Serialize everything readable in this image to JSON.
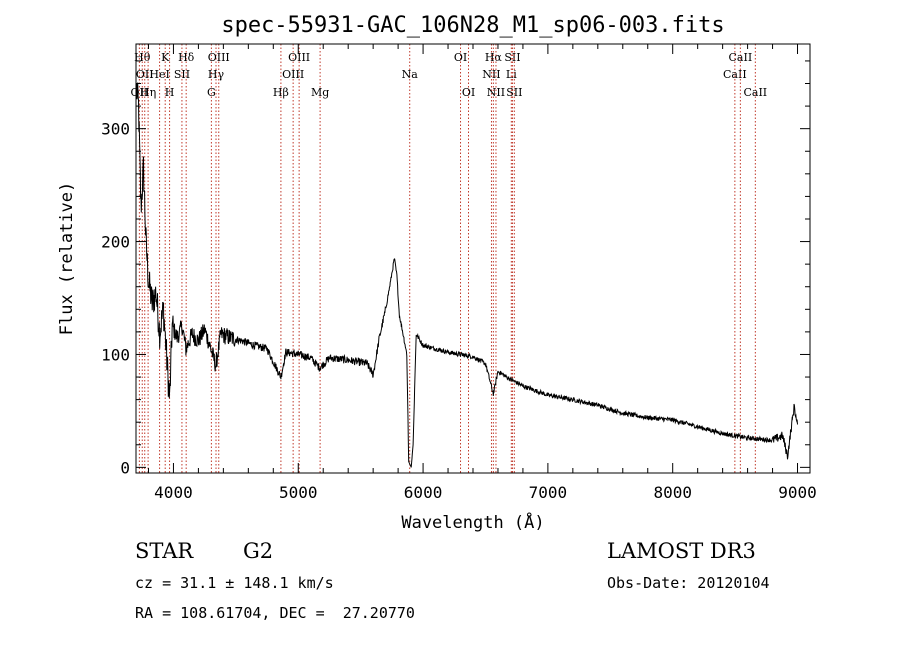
{
  "chart_data": {
    "type": "line",
    "title": "spec-55931-GAC_106N28_M1_sp06-003.fits",
    "xlabel": "Wavelength (Å)",
    "ylabel": "Flux (relative)",
    "xlim": [
      3700,
      9100
    ],
    "ylim": [
      -5,
      375
    ],
    "xticks": [
      4000,
      5000,
      6000,
      7000,
      8000,
      9000
    ],
    "xtick_labels": [
      "4000",
      "5000",
      "6000",
      "7000",
      "8000",
      "9000"
    ],
    "yticks": [
      0,
      100,
      200,
      300
    ],
    "ytick_labels": [
      "0",
      "100",
      "200",
      "300"
    ],
    "grid": false,
    "series": [
      {
        "name": "flux",
        "anchors": [
          [
            3705,
            335
          ],
          [
            3720,
            320
          ],
          [
            3740,
            230
          ],
          [
            3760,
            265
          ],
          [
            3780,
            200
          ],
          [
            3800,
            165
          ],
          [
            3830,
            145
          ],
          [
            3860,
            155
          ],
          [
            3890,
            120
          ],
          [
            3920,
            140
          ],
          [
            3950,
            90
          ],
          [
            3970,
            60
          ],
          [
            3990,
            125
          ],
          [
            4030,
            115
          ],
          [
            4070,
            125
          ],
          [
            4100,
            105
          ],
          [
            4150,
            118
          ],
          [
            4200,
            112
          ],
          [
            4250,
            122
          ],
          [
            4300,
            105
          ],
          [
            4340,
            90
          ],
          [
            4380,
            118
          ],
          [
            4450,
            115
          ],
          [
            4550,
            112
          ],
          [
            4650,
            108
          ],
          [
            4750,
            105
          ],
          [
            4861,
            80
          ],
          [
            4900,
            102
          ],
          [
            5000,
            100
          ],
          [
            5100,
            97
          ],
          [
            5172,
            88
          ],
          [
            5250,
            97
          ],
          [
            5400,
            95
          ],
          [
            5550,
            92
          ],
          [
            5600,
            82
          ],
          [
            5650,
            115
          ],
          [
            5700,
            140
          ],
          [
            5740,
            165
          ],
          [
            5770,
            185
          ],
          [
            5790,
            170
          ],
          [
            5810,
            135
          ],
          [
            5840,
            118
          ],
          [
            5870,
            100
          ],
          [
            5885,
            5
          ],
          [
            5905,
            0
          ],
          [
            5920,
            20
          ],
          [
            5945,
            118
          ],
          [
            6000,
            108
          ],
          [
            6100,
            105
          ],
          [
            6200,
            102
          ],
          [
            6300,
            100
          ],
          [
            6400,
            98
          ],
          [
            6500,
            92
          ],
          [
            6563,
            65
          ],
          [
            6600,
            85
          ],
          [
            6700,
            78
          ],
          [
            6800,
            72
          ],
          [
            6900,
            68
          ],
          [
            7000,
            64
          ],
          [
            7200,
            60
          ],
          [
            7400,
            55
          ],
          [
            7600,
            48
          ],
          [
            7800,
            44
          ],
          [
            8000,
            42
          ],
          [
            8200,
            36
          ],
          [
            8400,
            30
          ],
          [
            8600,
            26
          ],
          [
            8800,
            24
          ],
          [
            8880,
            28
          ],
          [
            8920,
            10
          ],
          [
            8950,
            35
          ],
          [
            8975,
            55
          ],
          [
            8990,
            42
          ],
          [
            9000,
            38
          ]
        ]
      }
    ],
    "lines": [
      {
        "wl": 3727,
        "labels": [
          "OII"
        ],
        "row": 3
      },
      {
        "wl": 3750,
        "labels": [
          "Hθ"
        ],
        "row": 1
      },
      {
        "wl": 3770,
        "labels": [
          "OII"
        ],
        "row": 2
      },
      {
        "wl": 3797,
        "labels": [
          "Hη"
        ],
        "row": 3
      },
      {
        "wl": 3889,
        "labels": [
          "HeI"
        ],
        "row": 2
      },
      {
        "wl": 3934,
        "labels": [
          "K"
        ],
        "row": 1
      },
      {
        "wl": 3969,
        "labels": [
          "H"
        ],
        "row": 3
      },
      {
        "wl": 4068,
        "labels": [
          "SII"
        ],
        "row": 2
      },
      {
        "wl": 4102,
        "labels": [
          "Hδ"
        ],
        "row": 1
      },
      {
        "wl": 4304,
        "labels": [
          "G"
        ],
        "row": 3
      },
      {
        "wl": 4341,
        "labels": [
          "Hγ"
        ],
        "row": 2
      },
      {
        "wl": 4363,
        "labels": [
          "OIII"
        ],
        "row": 1
      },
      {
        "wl": 4861,
        "labels": [
          "Hβ"
        ],
        "row": 3
      },
      {
        "wl": 4959,
        "labels": [
          "OIII"
        ],
        "row": 2
      },
      {
        "wl": 5007,
        "labels": [
          "OIII"
        ],
        "row": 1
      },
      {
        "wl": 5175,
        "labels": [
          "Mg"
        ],
        "row": 3
      },
      {
        "wl": 5893,
        "labels": [
          "Na"
        ],
        "row": 2
      },
      {
        "wl": 6300,
        "labels": [
          "OI"
        ],
        "row": 1
      },
      {
        "wl": 6364,
        "labels": [
          "OI"
        ],
        "row": 3
      },
      {
        "wl": 6548,
        "labels": [
          "NII"
        ],
        "row": 2
      },
      {
        "wl": 6563,
        "labels": [
          "Hα"
        ],
        "row": 1
      },
      {
        "wl": 6584,
        "labels": [
          "NII"
        ],
        "row": 3
      },
      {
        "wl": 6707,
        "labels": [
          "Li"
        ],
        "row": 2
      },
      {
        "wl": 6716,
        "labels": [
          "SII"
        ],
        "row": 1
      },
      {
        "wl": 6731,
        "labels": [
          "SII"
        ],
        "row": 3
      },
      {
        "wl": 8498,
        "labels": [
          "CaII"
        ],
        "row": 2
      },
      {
        "wl": 8542,
        "labels": [
          "CaII"
        ],
        "row": 1
      },
      {
        "wl": 8662,
        "labels": [
          "CaII"
        ],
        "row": 3
      }
    ]
  },
  "info": {
    "class": "STAR",
    "subclass": "G2",
    "survey": "LAMOST DR3",
    "cz": "cz = 31.1 ± 148.1 km/s",
    "obs_date": "Obs-Date: 20120104",
    "coords": "RA = 108.61704, DEC =  27.20770"
  }
}
